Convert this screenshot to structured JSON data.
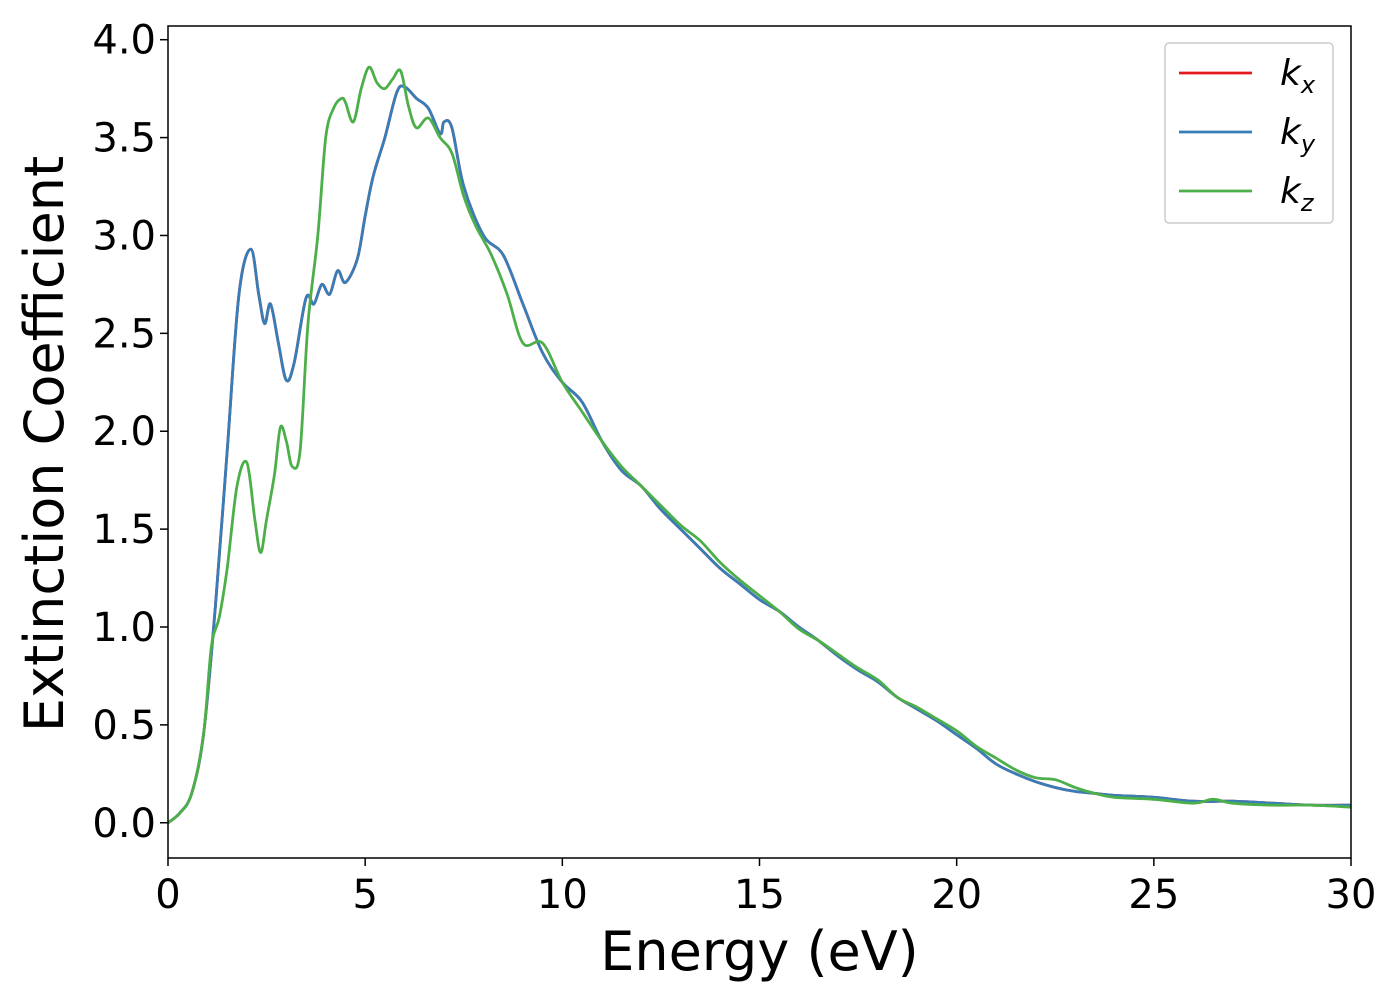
{
  "chart_data": {
    "type": "line",
    "xlabel": "Energy (eV)",
    "ylabel": "Extinction Coefficient",
    "xlim": [
      0,
      30
    ],
    "ylim": [
      -0.18,
      4.07
    ],
    "xticks": [
      0,
      5,
      10,
      15,
      20,
      25,
      30
    ],
    "xtick_labels": [
      "0",
      "5",
      "10",
      "15",
      "20",
      "25",
      "30"
    ],
    "yticks": [
      0.0,
      0.5,
      1.0,
      1.5,
      2.0,
      2.5,
      3.0,
      3.5,
      4.0
    ],
    "ytick_labels": [
      "0.0",
      "0.5",
      "1.0",
      "1.5",
      "2.0",
      "2.5",
      "3.0",
      "3.5",
      "4.0"
    ],
    "grid": false,
    "legend_position": "top-right",
    "series": [
      {
        "name": "k",
        "subscript": "x",
        "color": "#e41a1c",
        "x": [
          0,
          0.3,
          0.6,
          0.9,
          1.2,
          1.5,
          1.8,
          2.1,
          2.3,
          2.45,
          2.6,
          2.8,
          3.0,
          3.2,
          3.5,
          3.7,
          3.9,
          4.1,
          4.3,
          4.5,
          4.8,
          5.0,
          5.2,
          5.5,
          5.8,
          6.0,
          6.3,
          6.6,
          6.9,
          7.0,
          7.2,
          7.5,
          8.0,
          8.5,
          9.0,
          9.5,
          10.0,
          10.5,
          11.0,
          11.5,
          12.0,
          12.5,
          13.0,
          13.5,
          14.0,
          14.5,
          15.0,
          15.5,
          16.0,
          16.5,
          17.0,
          17.5,
          18.0,
          18.5,
          19.0,
          19.5,
          20.0,
          20.5,
          21.0,
          21.5,
          22.0,
          22.5,
          23.0,
          23.5,
          24.0,
          25.0,
          26.0,
          27.0,
          28.0,
          29.0,
          30.0
        ],
        "y": [
          0.0,
          0.05,
          0.15,
          0.45,
          1.1,
          1.9,
          2.7,
          2.93,
          2.7,
          2.55,
          2.65,
          2.45,
          2.26,
          2.35,
          2.68,
          2.65,
          2.75,
          2.7,
          2.82,
          2.76,
          2.88,
          3.1,
          3.3,
          3.5,
          3.73,
          3.76,
          3.7,
          3.65,
          3.52,
          3.58,
          3.55,
          3.25,
          3.0,
          2.9,
          2.65,
          2.4,
          2.25,
          2.15,
          1.95,
          1.8,
          1.72,
          1.6,
          1.5,
          1.4,
          1.3,
          1.22,
          1.14,
          1.08,
          1.0,
          0.93,
          0.85,
          0.78,
          0.72,
          0.64,
          0.58,
          0.52,
          0.45,
          0.38,
          0.3,
          0.25,
          0.21,
          0.18,
          0.16,
          0.15,
          0.14,
          0.13,
          0.11,
          0.11,
          0.1,
          0.09,
          0.09
        ]
      },
      {
        "name": "k",
        "subscript": "y",
        "color": "#377eb8",
        "x": [
          0,
          0.3,
          0.6,
          0.9,
          1.2,
          1.5,
          1.8,
          2.1,
          2.3,
          2.45,
          2.6,
          2.8,
          3.0,
          3.2,
          3.5,
          3.7,
          3.9,
          4.1,
          4.3,
          4.5,
          4.8,
          5.0,
          5.2,
          5.5,
          5.8,
          6.0,
          6.3,
          6.6,
          6.9,
          7.0,
          7.2,
          7.5,
          8.0,
          8.5,
          9.0,
          9.5,
          10.0,
          10.5,
          11.0,
          11.5,
          12.0,
          12.5,
          13.0,
          13.5,
          14.0,
          14.5,
          15.0,
          15.5,
          16.0,
          16.5,
          17.0,
          17.5,
          18.0,
          18.5,
          19.0,
          19.5,
          20.0,
          20.5,
          21.0,
          21.5,
          22.0,
          22.5,
          23.0,
          23.5,
          24.0,
          25.0,
          26.0,
          27.0,
          28.0,
          29.0,
          30.0
        ],
        "y": [
          0.0,
          0.05,
          0.15,
          0.45,
          1.1,
          1.9,
          2.7,
          2.93,
          2.7,
          2.55,
          2.65,
          2.45,
          2.26,
          2.35,
          2.68,
          2.65,
          2.75,
          2.7,
          2.82,
          2.76,
          2.88,
          3.1,
          3.3,
          3.5,
          3.73,
          3.76,
          3.7,
          3.65,
          3.52,
          3.58,
          3.55,
          3.25,
          3.0,
          2.9,
          2.65,
          2.4,
          2.25,
          2.15,
          1.95,
          1.8,
          1.72,
          1.6,
          1.5,
          1.4,
          1.3,
          1.22,
          1.14,
          1.08,
          1.0,
          0.93,
          0.85,
          0.78,
          0.72,
          0.64,
          0.58,
          0.52,
          0.45,
          0.38,
          0.3,
          0.25,
          0.21,
          0.18,
          0.16,
          0.15,
          0.14,
          0.13,
          0.11,
          0.11,
          0.1,
          0.09,
          0.09
        ]
      },
      {
        "name": "k",
        "subscript": "z",
        "color": "#4daf4a",
        "x": [
          0,
          0.3,
          0.6,
          0.9,
          1.1,
          1.3,
          1.5,
          1.75,
          2.0,
          2.2,
          2.35,
          2.5,
          2.7,
          2.85,
          3.0,
          3.15,
          3.35,
          3.55,
          3.8,
          4.0,
          4.2,
          4.4,
          4.5,
          4.7,
          4.9,
          5.1,
          5.3,
          5.5,
          5.7,
          5.9,
          6.1,
          6.3,
          6.6,
          6.9,
          7.2,
          7.5,
          7.8,
          8.2,
          8.6,
          9.0,
          9.5,
          10.0,
          10.5,
          11.0,
          11.5,
          12.0,
          12.5,
          13.0,
          13.5,
          14.0,
          14.5,
          15.0,
          15.5,
          16.0,
          16.5,
          17.0,
          17.5,
          18.0,
          18.5,
          19.0,
          19.5,
          20.0,
          20.5,
          21.0,
          21.5,
          22.0,
          22.5,
          23.0,
          23.5,
          24.0,
          25.0,
          26.0,
          26.5,
          27.0,
          28.0,
          29.0,
          30.0
        ],
        "y": [
          0.0,
          0.05,
          0.15,
          0.45,
          0.9,
          1.05,
          1.3,
          1.72,
          1.84,
          1.55,
          1.38,
          1.55,
          1.78,
          2.02,
          1.95,
          1.82,
          1.9,
          2.55,
          3.0,
          3.5,
          3.65,
          3.7,
          3.68,
          3.58,
          3.75,
          3.86,
          3.78,
          3.75,
          3.8,
          3.84,
          3.66,
          3.55,
          3.6,
          3.5,
          3.42,
          3.2,
          3.05,
          2.9,
          2.7,
          2.45,
          2.45,
          2.25,
          2.1,
          1.95,
          1.82,
          1.72,
          1.62,
          1.52,
          1.44,
          1.33,
          1.24,
          1.16,
          1.08,
          0.99,
          0.93,
          0.86,
          0.79,
          0.73,
          0.64,
          0.59,
          0.53,
          0.47,
          0.39,
          0.33,
          0.27,
          0.23,
          0.22,
          0.18,
          0.15,
          0.13,
          0.12,
          0.1,
          0.12,
          0.1,
          0.09,
          0.09,
          0.08
        ]
      }
    ]
  }
}
